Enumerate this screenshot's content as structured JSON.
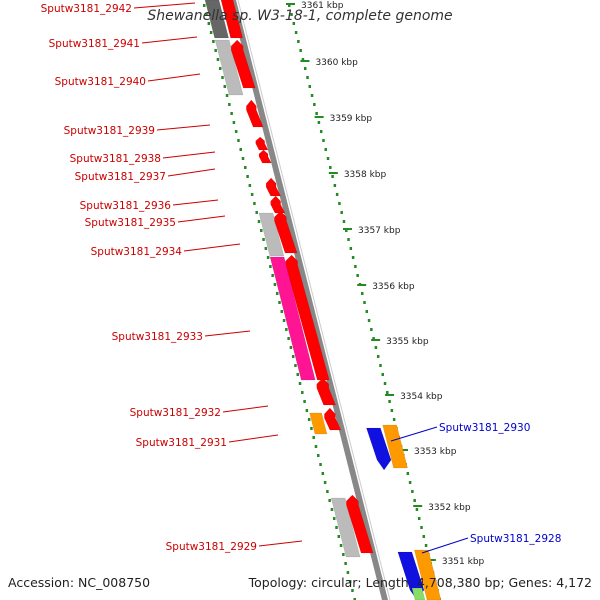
{
  "title": "Shewanella sp. W3-18-1, complete genome",
  "footer": {
    "accession": "Accession: NC_008750",
    "details": "Topology: circular; Length: 4,708,380 bp; Genes: 4,172"
  },
  "colors": {
    "forward_cds": "#ff0000",
    "reverse_cds": "#1010e0",
    "pink_cds": "#ff1493",
    "orange_cds": "#ff9900",
    "grey_cds": "#bbbbbb",
    "backbone": "#888888",
    "tick": "#228b22",
    "label_forward": "#cc0000",
    "label_reverse": "#0000cc"
  },
  "kbp_ticks": [
    {
      "label": "3361 kbp"
    },
    {
      "label": "3360 kbp"
    },
    {
      "label": "3359 kbp"
    },
    {
      "label": "3358 kbp"
    },
    {
      "label": "3357 kbp"
    },
    {
      "label": "3356 kbp"
    },
    {
      "label": "3355 kbp"
    },
    {
      "label": "3354 kbp"
    },
    {
      "label": "3353 kbp"
    },
    {
      "label": "3352 kbp"
    },
    {
      "label": "3351 kbp"
    }
  ],
  "gene_labels_left": [
    {
      "id": "Sputw3181_2942"
    },
    {
      "id": "Sputw3181_2941"
    },
    {
      "id": "Sputw3181_2940"
    },
    {
      "id": "Sputw3181_2939"
    },
    {
      "id": "Sputw3181_2938"
    },
    {
      "id": "Sputw3181_2937"
    },
    {
      "id": "Sputw3181_2936"
    },
    {
      "id": "Sputw3181_2935"
    },
    {
      "id": "Sputw3181_2934"
    },
    {
      "id": "Sputw3181_2933"
    },
    {
      "id": "Sputw3181_2932"
    },
    {
      "id": "Sputw3181_2931"
    },
    {
      "id": "Sputw3181_2929"
    }
  ],
  "gene_labels_right": [
    {
      "id": "Sputw3181_2930"
    },
    {
      "id": "Sputw3181_2928"
    }
  ]
}
